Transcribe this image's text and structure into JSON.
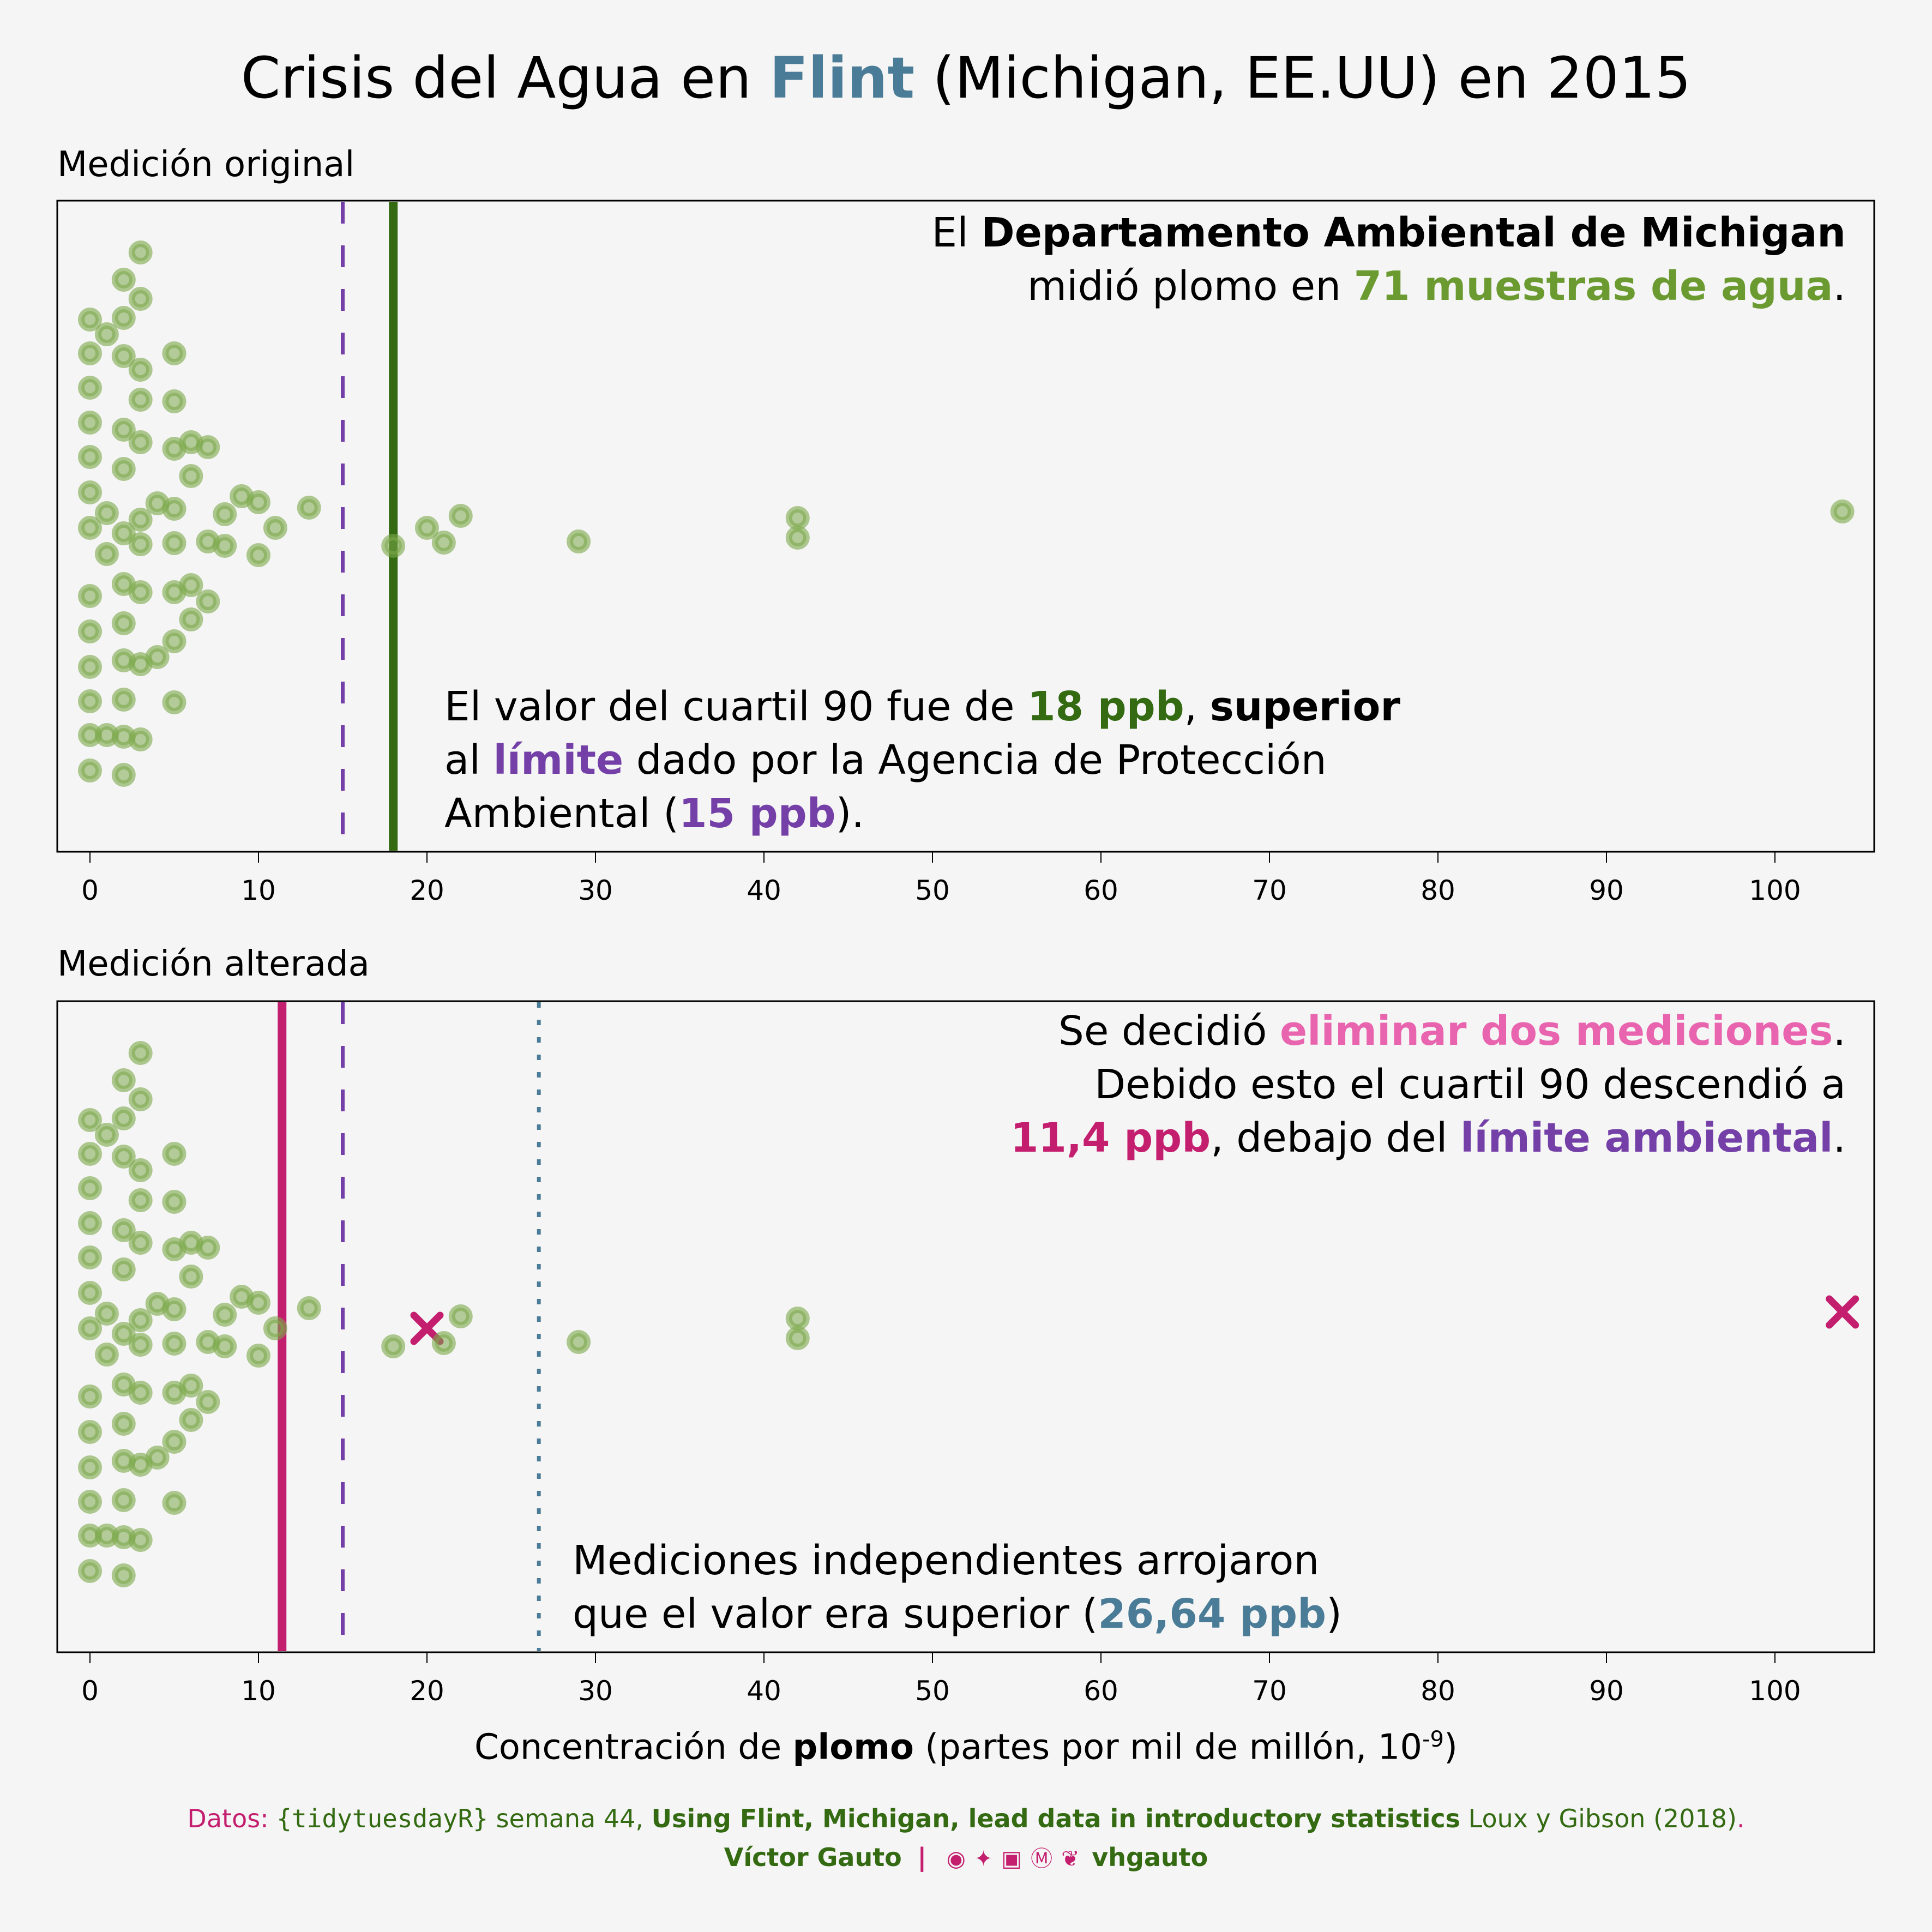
{
  "title": {
    "before": "Crisis del Agua en ",
    "highlight": "Flint",
    "after": " (Michigan, EE.UU) en 2015"
  },
  "colors": {
    "background": "#F5F5F5",
    "points": "#7BA84A",
    "q90_original": "#336A12",
    "epa_limit": "#7440A8",
    "q90_altered": "#C41E6F",
    "independent": "#4A7C97",
    "removed_marker": "#C41E6F",
    "highlight_pink": "#E964AE"
  },
  "panels": {
    "original": {
      "label": "Medición original",
      "annotation_top": {
        "l1_a": "El ",
        "l1_b": "Departamento  Ambiental de Michigan",
        "l2_a": "midió plomo en ",
        "l2_b": "71 muestras de agua",
        "l2_c": "."
      },
      "annotation_mid": {
        "l1_a": "El valor del cuartil 90 fue de ",
        "l1_b": "18 ppb",
        "l1_c": ", ",
        "l1_d": "superior",
        "l2_a": "al ",
        "l2_b": "límite",
        "l2_c": " dado por la  Agencia de Protección",
        "l3_a": "Ambiental (",
        "l3_b": "15 ppb",
        "l3_c": ")."
      }
    },
    "altered": {
      "label": "Medición alterada",
      "annotation_top": {
        "l1_a": "Se decidió ",
        "l1_b": "eliminar dos mediciones",
        "l1_c": ".",
        "l2": "Debido esto el cuartil 90 descendió a",
        "l3_a": "11,4 ppb",
        "l3_b": ", debajo del ",
        "l3_c": "límite ambiental",
        "l3_d": "."
      },
      "annotation_bottom": {
        "l1": "Mediciones independientes arrojaron",
        "l2_a": "que el valor era superior (",
        "l2_b": "26,64 ppb",
        "l2_c": ")"
      }
    }
  },
  "xaxis": {
    "label_a": "Concentración de ",
    "label_b": "plomo",
    "label_c": " (partes por mil de millón, 10",
    "label_sup": "-9",
    "label_d": ")"
  },
  "footer": {
    "datos": "Datos: ",
    "pkg": "{tidytuesdayR}",
    "semana": " semana 44, ",
    "paper": "Using Flint, Michigan, lead data in introductory statistics",
    "authors": " Loux y Gibson (2018)",
    "dot": ".",
    "author": "Víctor Gauto",
    "sep": "|",
    "icons": [
      "github-icon",
      "twitter-icon",
      "instagram-icon",
      "mastodon-icon",
      "bluesky-icon"
    ],
    "handle": "vhgauto"
  },
  "chart_data": {
    "type": "scatter",
    "subtype": "beeswarm",
    "xlim": [
      -2,
      106
    ],
    "xticks": [
      0,
      10,
      20,
      30,
      40,
      50,
      60,
      70,
      80,
      90,
      100
    ],
    "xlabel": "Concentración de plomo (partes por mil de millón, 10-9)",
    "panels": [
      {
        "name": "Medición original",
        "n": 71,
        "values": [
          3,
          2,
          3,
          0,
          1,
          2,
          5,
          0,
          2,
          3,
          0,
          3,
          5,
          0,
          2,
          3,
          5,
          6,
          7,
          0,
          2,
          6,
          0,
          9,
          10,
          4,
          5,
          1,
          13,
          8,
          3,
          0,
          11,
          2,
          20,
          22,
          42,
          42,
          104,
          18,
          21,
          29,
          3,
          5,
          7,
          8,
          10,
          1,
          2,
          6,
          3,
          5,
          7,
          0,
          6,
          2,
          5,
          0,
          4,
          2,
          3,
          0,
          0,
          2,
          5,
          0,
          1,
          2,
          3,
          0,
          2
        ],
        "removed": [],
        "vlines": [
          {
            "value": 15,
            "style": "dashed",
            "label": "límite EPA 15 ppb"
          },
          {
            "value": 18,
            "style": "solid",
            "label": "cuartil 90 18 ppb"
          }
        ]
      },
      {
        "name": "Medición alterada",
        "values": [
          3,
          2,
          3,
          0,
          1,
          2,
          5,
          0,
          2,
          3,
          0,
          3,
          5,
          0,
          2,
          3,
          5,
          6,
          7,
          0,
          2,
          6,
          0,
          9,
          10,
          4,
          5,
          1,
          13,
          8,
          3,
          0,
          11,
          2,
          20,
          22,
          42,
          42,
          104,
          18,
          21,
          29,
          3,
          5,
          7,
          8,
          10,
          1,
          2,
          6,
          3,
          5,
          7,
          0,
          6,
          2,
          5,
          0,
          4,
          2,
          3,
          0,
          0,
          2,
          5,
          0,
          1,
          2,
          3,
          0,
          2
        ],
        "removed": [
          20,
          104
        ],
        "vlines": [
          {
            "value": 11.4,
            "style": "solid",
            "label": "cuartil 90 11,4 ppb"
          },
          {
            "value": 15,
            "style": "dashed",
            "label": "límite EPA 15 ppb"
          },
          {
            "value": 26.64,
            "style": "dotted",
            "label": "mediciones independientes 26,64 ppb"
          }
        ]
      }
    ]
  }
}
